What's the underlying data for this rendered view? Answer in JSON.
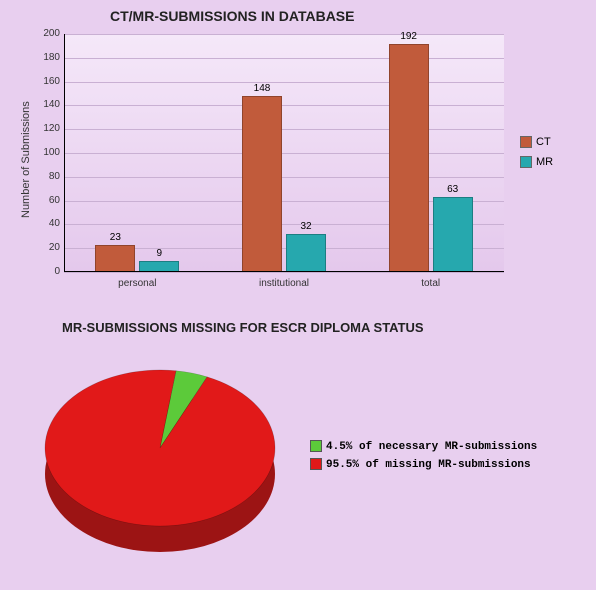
{
  "page_background": "#e8cfef",
  "bar_chart": {
    "type": "bar",
    "title": "CT/MR-SUBMISSIONS IN DATABASE",
    "title_fontsize": 14,
    "ylabel": "Number of Submissions",
    "categories": [
      "personal",
      "institutional",
      "total"
    ],
    "series": [
      {
        "name": "CT",
        "color": "#c15b3b",
        "values": [
          23,
          148,
          192
        ]
      },
      {
        "name": "MR",
        "color": "#26a8ae",
        "values": [
          9,
          32,
          63
        ]
      }
    ],
    "ylim": [
      0,
      200
    ],
    "ytick_step": 20,
    "grid_color": "#c9b0d3",
    "plot_bg_top": "#f5e8f9",
    "plot_bg_bottom": "#e4c8ec",
    "axis_line_color": "#000000",
    "legend_position": "right"
  },
  "pie_chart": {
    "type": "pie",
    "title": "MR-SUBMISSIONS MISSING FOR ESCR DIPLOMA STATUS",
    "title_fontsize": 13,
    "slices": [
      {
        "label": "4.5% of necessary MR-submissions",
        "value": 4.5,
        "color": "#5cca3a"
      },
      {
        "label": "95.5% of missing MR-submissions",
        "value": 95.5,
        "color": "#e11919"
      }
    ],
    "side_color": "#9c1414",
    "thickness_look": "3d",
    "legend_position": "right"
  }
}
